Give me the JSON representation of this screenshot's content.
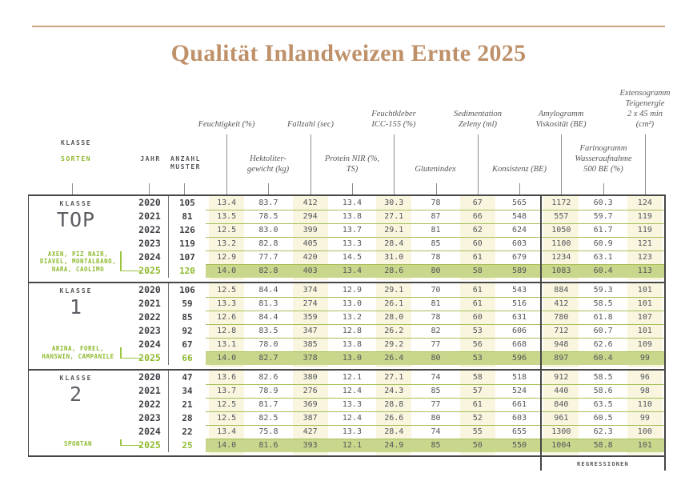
{
  "title": "Qualität Inlandweizen Ernte 2025",
  "left_header": {
    "klasse": "KLASSE",
    "sorten": "SORTEN",
    "jahr": "JAHR",
    "anzahl": "ANZAHL\nMUSTER"
  },
  "measure_headers_upper": [
    "Feuchtigkeit (%)",
    "Fallzahl (sec)",
    "Feuchtkleber\nICC-155 (%)",
    "Sedimentation\nZeleny (ml)",
    "Amylogramm\nViskosität (BE)",
    "Extensogramm\nTeigenergie\n2 x 45 min (cm²)"
  ],
  "measure_headers_lower": [
    "Hektoliter-\ngewicht (kg)",
    "Protein NIR (%,\nTS)",
    "Glutenindex",
    "Konsistenz (BE)",
    "Farinogramm\nWasseraufnahme\n500 BE (%)"
  ],
  "regressionen_label": "REGRESSIONEN",
  "colors": {
    "accent_tan": "#bf916a",
    "accent_green": "#8fba2f",
    "row_highlight": "#c8d78c",
    "stripe_cream": "#f9f5df",
    "line_olive": "#a7bf58",
    "line_dark": "#464644",
    "text_gray": "#54565b"
  },
  "classes": [
    {
      "klasse_label": "KLASSE",
      "name": "TOP",
      "sorten": "AXEN, PIZ NAIR,\nDIAVEL, MONTALBANO,\nNARA, CAOLIMO",
      "rows": [
        {
          "jahr": "2020",
          "anzahl": "105",
          "values": [
            "13.4",
            "83.7",
            "412",
            "13.4",
            "30.3",
            "78",
            "67",
            "565",
            "1172",
            "60.3",
            "124"
          ],
          "highlight": false
        },
        {
          "jahr": "2021",
          "anzahl": "81",
          "values": [
            "13.5",
            "78.5",
            "294",
            "13.8",
            "27.1",
            "87",
            "66",
            "548",
            "557",
            "59.7",
            "119"
          ],
          "highlight": false
        },
        {
          "jahr": "2022",
          "anzahl": "126",
          "values": [
            "12.5",
            "83.0",
            "399",
            "13.7",
            "29.1",
            "81",
            "62",
            "624",
            "1050",
            "61.7",
            "119"
          ],
          "highlight": false
        },
        {
          "jahr": "2023",
          "anzahl": "119",
          "values": [
            "13.2",
            "82.8",
            "405",
            "13.3",
            "28.4",
            "85",
            "60",
            "603",
            "1100",
            "60.9",
            "121"
          ],
          "highlight": false
        },
        {
          "jahr": "2024",
          "anzahl": "107",
          "values": [
            "12.9",
            "77.7",
            "420",
            "14.5",
            "31.0",
            "78",
            "61",
            "679",
            "1234",
            "63.1",
            "123"
          ],
          "highlight": false
        },
        {
          "jahr": "2025",
          "anzahl": "120",
          "values": [
            "14.0",
            "82.8",
            "403",
            "13.4",
            "28.6",
            "80",
            "58",
            "589",
            "1083",
            "60.4",
            "113"
          ],
          "highlight": true
        }
      ]
    },
    {
      "klasse_label": "KLASSE",
      "name": "1",
      "sorten": "ARINA, FOREL,\nHANSWIN, CAMPANILE",
      "rows": [
        {
          "jahr": "2020",
          "anzahl": "106",
          "values": [
            "12.5",
            "84.4",
            "374",
            "12.9",
            "29.1",
            "70",
            "61",
            "543",
            "884",
            "59.3",
            "101"
          ],
          "highlight": false
        },
        {
          "jahr": "2021",
          "anzahl": "59",
          "values": [
            "13.3",
            "81.3",
            "274",
            "13.0",
            "26.1",
            "81",
            "61",
            "516",
            "412",
            "58.5",
            "101"
          ],
          "highlight": false
        },
        {
          "jahr": "2022",
          "anzahl": "85",
          "values": [
            "12.6",
            "84.4",
            "359",
            "13.2",
            "28.0",
            "78",
            "60",
            "631",
            "780",
            "61.8",
            "107"
          ],
          "highlight": false
        },
        {
          "jahr": "2023",
          "anzahl": "92",
          "values": [
            "12.8",
            "83.5",
            "347",
            "12.8",
            "26.2",
            "82",
            "53",
            "606",
            "712",
            "60.7",
            "101"
          ],
          "highlight": false
        },
        {
          "jahr": "2024",
          "anzahl": "67",
          "values": [
            "13.1",
            "78.0",
            "385",
            "13.8",
            "29.2",
            "77",
            "56",
            "668",
            "948",
            "62.6",
            "109"
          ],
          "highlight": false
        },
        {
          "jahr": "2025",
          "anzahl": "66",
          "values": [
            "14.0",
            "82.7",
            "378",
            "13.0",
            "26.4",
            "80",
            "53",
            "596",
            "897",
            "60.4",
            "99"
          ],
          "highlight": true
        }
      ]
    },
    {
      "klasse_label": "KLASSE",
      "name": "2",
      "sorten": "SPONTAN",
      "rows": [
        {
          "jahr": "2020",
          "anzahl": "47",
          "values": [
            "13.6",
            "82.6",
            "380",
            "12.1",
            "27.1",
            "74",
            "58",
            "518",
            "912",
            "58.5",
            "96"
          ],
          "highlight": false
        },
        {
          "jahr": "2021",
          "anzahl": "34",
          "values": [
            "13.7",
            "78.9",
            "276",
            "12.4",
            "24.3",
            "85",
            "57",
            "524",
            "440",
            "58.6",
            "98"
          ],
          "highlight": false
        },
        {
          "jahr": "2022",
          "anzahl": "21",
          "values": [
            "12.5",
            "81.7",
            "369",
            "13.3",
            "28.8",
            "77",
            "61",
            "661",
            "840",
            "63.5",
            "110"
          ],
          "highlight": false
        },
        {
          "jahr": "2023",
          "anzahl": "28",
          "values": [
            "12.5",
            "82.5",
            "387",
            "12.4",
            "26.6",
            "80",
            "52",
            "603",
            "961",
            "60.5",
            "99"
          ],
          "highlight": false
        },
        {
          "jahr": "2024",
          "anzahl": "22",
          "values": [
            "13.4",
            "75.8",
            "427",
            "13.3",
            "28.4",
            "74",
            "55",
            "655",
            "1300",
            "62.3",
            "100"
          ],
          "highlight": false
        },
        {
          "jahr": "2025",
          "anzahl": "25",
          "values": [
            "14.0",
            "81.6",
            "393",
            "12.1",
            "24.9",
            "85",
            "50",
            "550",
            "1004",
            "58.8",
            "101"
          ],
          "highlight": true
        }
      ]
    }
  ]
}
